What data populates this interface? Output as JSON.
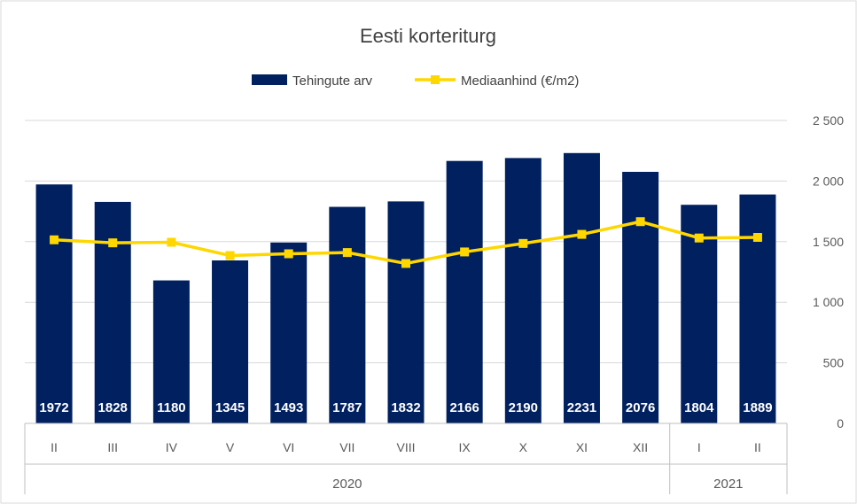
{
  "chart_data": {
    "type": "bar",
    "title": "Eesti korteriturg",
    "categories": [
      "II",
      "III",
      "IV",
      "V",
      "VI",
      "VII",
      "VIII",
      "IX",
      "X",
      "XI",
      "XII",
      "I",
      "II"
    ],
    "groups": [
      {
        "label": "2020",
        "count": 11
      },
      {
        "label": "2021",
        "count": 2
      }
    ],
    "series": [
      {
        "name": "Tehingute arv",
        "type": "bar",
        "color": "#002060",
        "values": [
          1972,
          1828,
          1180,
          1345,
          1493,
          1787,
          1832,
          2166,
          2190,
          2231,
          2076,
          1804,
          1889
        ],
        "labels": [
          "1972",
          "1828",
          "1180",
          "1345",
          "1493",
          "1787",
          "1832",
          "2166",
          "2190",
          "2231",
          "2076",
          "1804",
          "1889"
        ]
      },
      {
        "name": "Mediaanhind (€/m2)",
        "type": "line",
        "color": "#FFD700",
        "values": [
          1515,
          1490,
          1495,
          1385,
          1400,
          1410,
          1320,
          1415,
          1485,
          1560,
          1665,
          1530,
          1535
        ]
      }
    ],
    "ylim": [
      0,
      2500
    ],
    "yticks": [
      0,
      500,
      1000,
      1500,
      2000,
      2500
    ],
    "ytick_labels": [
      "0",
      "500",
      "1 000",
      "1 500",
      "2 000",
      "2 500"
    ],
    "grid": true,
    "legend_position": "top"
  }
}
